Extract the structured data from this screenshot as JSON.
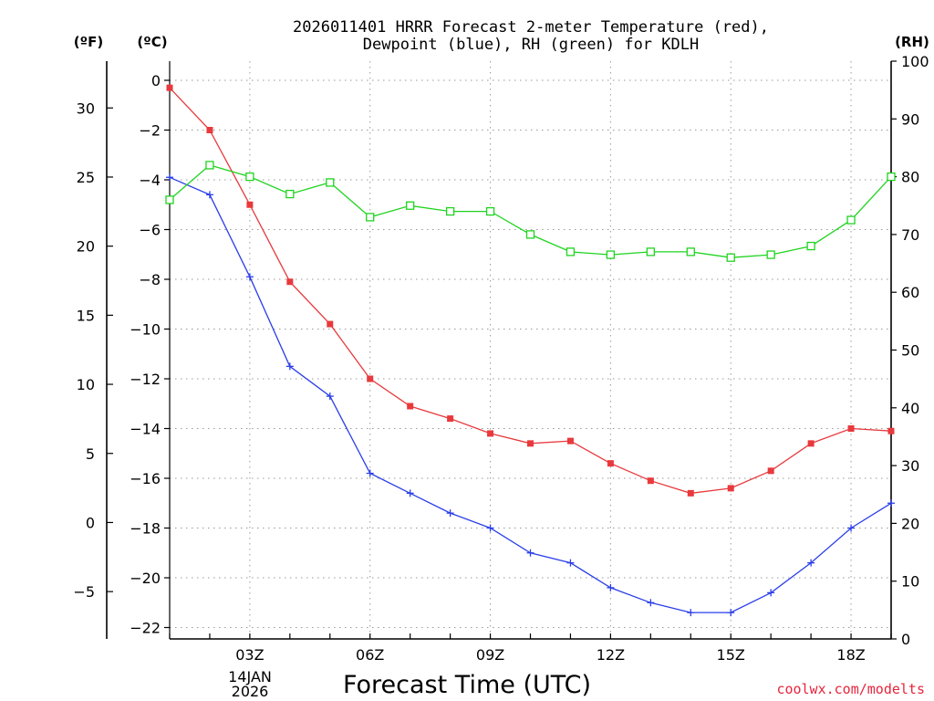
{
  "chart_data": {
    "type": "line",
    "title_line1": "2026011401 HRRR Forecast 2-meter Temperature (red),",
    "title_line2": "Dewpoint (blue), RH (green) for KDLH",
    "xlabel": "Forecast Time (UTC)",
    "unit_f": "(ºF)",
    "unit_c": "(ºC)",
    "unit_rh": "(RH)",
    "date_label_line1": "14JAN",
    "date_label_line2": "2026",
    "credit": "coolwx.com/modelts",
    "x_hours": [
      1,
      2,
      3,
      4,
      5,
      6,
      7,
      8,
      9,
      10,
      11,
      12,
      13,
      14,
      15,
      16,
      17,
      18,
      19
    ],
    "xlim": [
      1,
      19
    ],
    "x_ticks": [
      {
        "hour": 3,
        "label": "03Z"
      },
      {
        "hour": 6,
        "label": "06Z"
      },
      {
        "hour": 9,
        "label": "09Z"
      },
      {
        "hour": 12,
        "label": "12Z"
      },
      {
        "hour": 15,
        "label": "15Z"
      },
      {
        "hour": 18,
        "label": "18Z"
      }
    ],
    "ylim_c": [
      -22.5,
      0.5
    ],
    "y_ticks_c": [
      "0",
      "−2",
      "−4",
      "−6",
      "−8",
      "−10",
      "−12",
      "−14",
      "−16",
      "−18",
      "−20",
      "−22"
    ],
    "y_ticks_f": [
      "30",
      "25",
      "20",
      "15",
      "10",
      "5",
      "0",
      "−5"
    ],
    "ylim_rh": [
      0,
      100
    ],
    "y_ticks_rh": [
      "0",
      "10",
      "20",
      "30",
      "40",
      "50",
      "60",
      "70",
      "80",
      "90",
      "100"
    ],
    "series": [
      {
        "name": "2-meter Temperature",
        "axis": "c",
        "color": "#e8393c",
        "marker": "filled-square",
        "values": [
          -0.3,
          -2.0,
          -5.0,
          -8.1,
          -9.8,
          -12.0,
          -13.1,
          -13.6,
          -14.2,
          -14.6,
          -14.5,
          -15.4,
          -16.1,
          -16.6,
          -16.4,
          -15.7,
          -14.6,
          -14.0,
          -14.1
        ]
      },
      {
        "name": "Dewpoint",
        "axis": "c",
        "color": "#2a3ee8",
        "marker": "plus",
        "values": [
          -3.9,
          -4.6,
          -7.9,
          -11.5,
          -12.7,
          -15.8,
          -16.6,
          -17.4,
          -18.0,
          -19.0,
          -19.4,
          -20.4,
          -21.0,
          -21.4,
          -21.4,
          -20.6,
          -19.4,
          -18.0,
          -17.0
        ]
      },
      {
        "name": "Relative Humidity",
        "axis": "rh",
        "color": "#1fd41f",
        "marker": "open-square",
        "values": [
          76,
          82,
          80,
          77,
          79,
          73,
          75,
          74,
          74,
          70,
          67,
          66.5,
          67,
          67,
          66,
          66.5,
          68,
          72.5,
          80
        ]
      }
    ]
  }
}
